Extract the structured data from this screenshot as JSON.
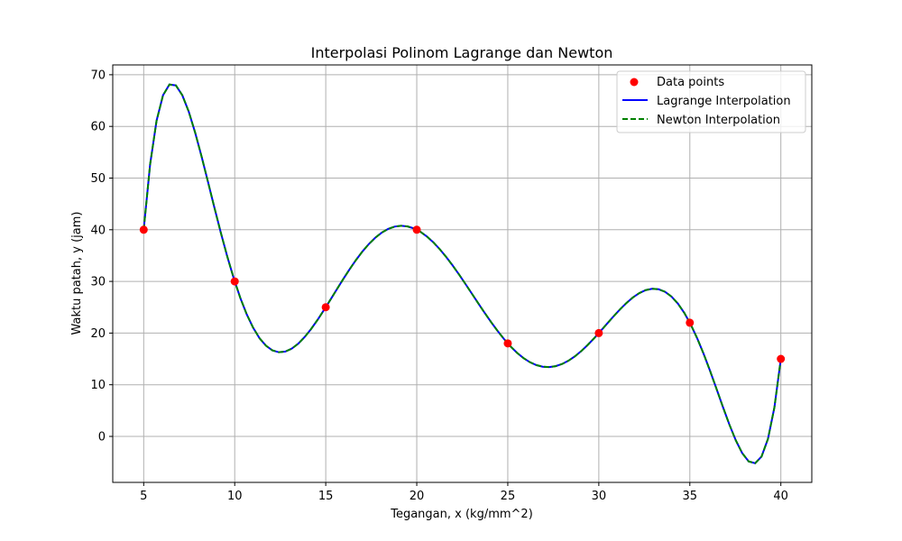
{
  "chart_data": {
    "type": "line",
    "title": "Interpolasi Polinom Lagrange dan Newton",
    "xlabel": "Tegangan, x (kg/mm^2)",
    "ylabel": "Waktu patah, y (jam)",
    "xlim": [
      3.3,
      41.7
    ],
    "ylim": [
      -8.9,
      71.9
    ],
    "xticks": [
      5,
      10,
      15,
      20,
      25,
      30,
      35,
      40
    ],
    "yticks": [
      0,
      10,
      20,
      30,
      40,
      50,
      60,
      70
    ],
    "grid": true,
    "legend_position": "top-right",
    "data_points": {
      "name": "Data points",
      "color": "#ff0000",
      "x": [
        5,
        10,
        15,
        20,
        25,
        30,
        35,
        40
      ],
      "y": [
        40,
        30,
        25,
        40,
        18,
        20,
        22,
        15
      ]
    },
    "series": [
      {
        "name": "Lagrange Interpolation",
        "color": "#0000ff",
        "style": "solid"
      },
      {
        "name": "Newton Interpolation",
        "color": "#008000",
        "style": "dashed"
      }
    ]
  }
}
